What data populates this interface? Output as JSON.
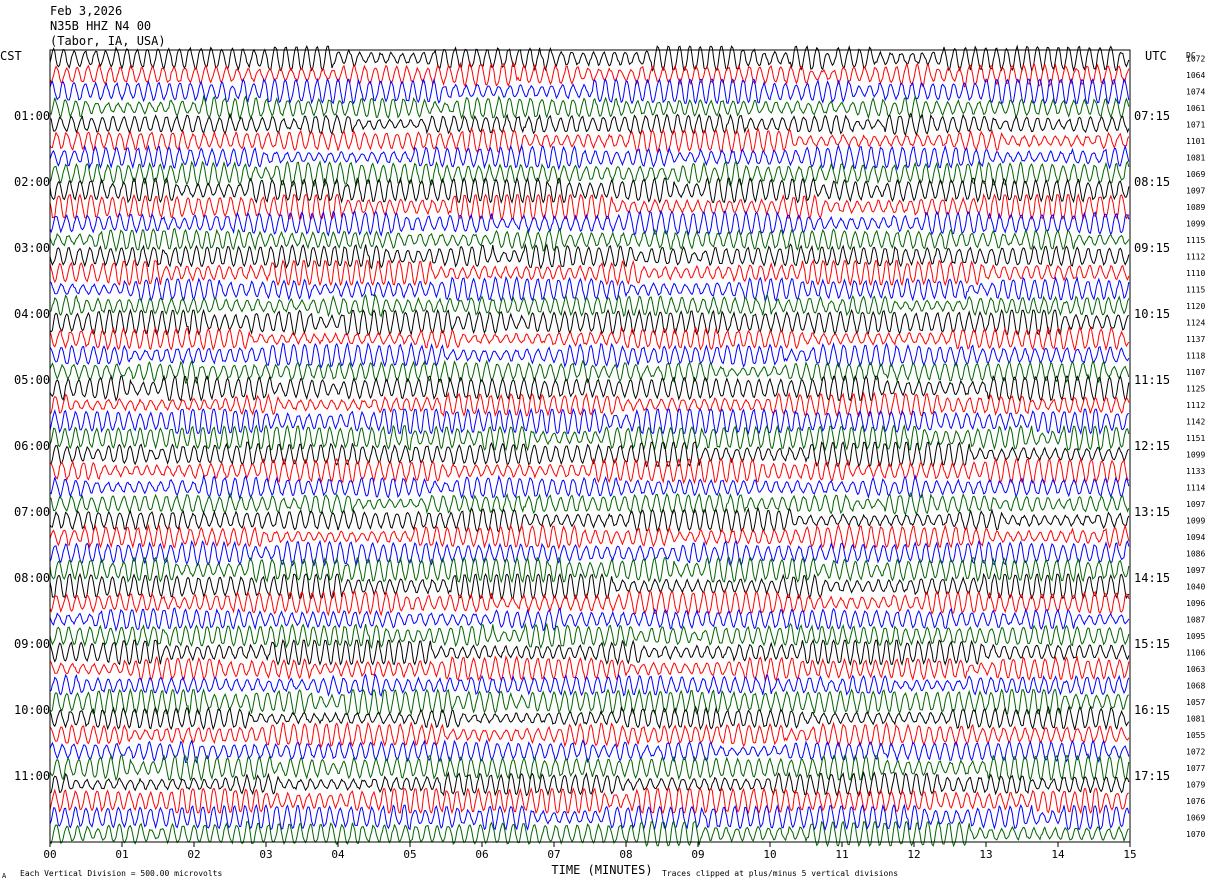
{
  "header": {
    "date": "Feb 3,2026",
    "station": "N35B HHZ N4 00",
    "location": "(Tabor, IA, USA)"
  },
  "left_tz": "CST",
  "right_tz": "UTC",
  "dc_label": "DC",
  "footer": {
    "scale_note": "Each Vertical Division =  500.00 microvolts",
    "clip_note": "Traces clipped at plus/minus 5 vertical divisions",
    "corner_mark": "A"
  },
  "colors": {
    "trace_cycle": [
      "#000000",
      "#ff0000",
      "#0000ff",
      "#006400"
    ],
    "frame": "#000000"
  },
  "chart_data": {
    "type": "helicorder",
    "xlabel": "TIME (MINUTES)",
    "x_ticks": [
      "00",
      "01",
      "02",
      "03",
      "04",
      "05",
      "06",
      "07",
      "08",
      "09",
      "10",
      "11",
      "12",
      "13",
      "14",
      "15"
    ],
    "xlim": [
      0,
      15
    ],
    "left_hour_labels": [
      "01:00",
      "02:00",
      "03:00",
      "04:00",
      "05:00",
      "06:00",
      "07:00",
      "08:00",
      "09:00",
      "10:00",
      "11:00"
    ],
    "right_hour_labels": [
      "07:15",
      "08:15",
      "09:15",
      "10:15",
      "11:15",
      "12:15",
      "13:15",
      "14:15",
      "15:15",
      "16:15",
      "17:15"
    ],
    "dc_offsets": [
      1072,
      1064,
      1074,
      1061,
      1071,
      1101,
      1081,
      1069,
      1097,
      1089,
      1099,
      1115,
      1112,
      1110,
      1115,
      1120,
      1124,
      1137,
      1118,
      1107,
      1125,
      1112,
      1142,
      1151,
      1099,
      1133,
      1114,
      1097,
      1099,
      1094,
      1086,
      1097,
      1040,
      1096,
      1087,
      1095,
      1106,
      1063,
      1068,
      1057,
      1081,
      1055,
      1072,
      1077,
      1079,
      1076,
      1069,
      1070
    ]
  }
}
